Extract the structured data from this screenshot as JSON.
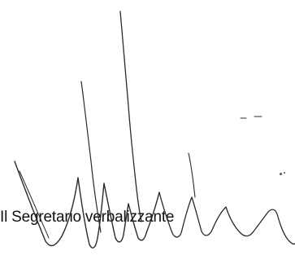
{
  "document": {
    "signatory_caption": "Il Segretario verbalizzante"
  },
  "signature": {
    "ink_color": "#2a2a2a",
    "kind": "handwritten-signature"
  }
}
